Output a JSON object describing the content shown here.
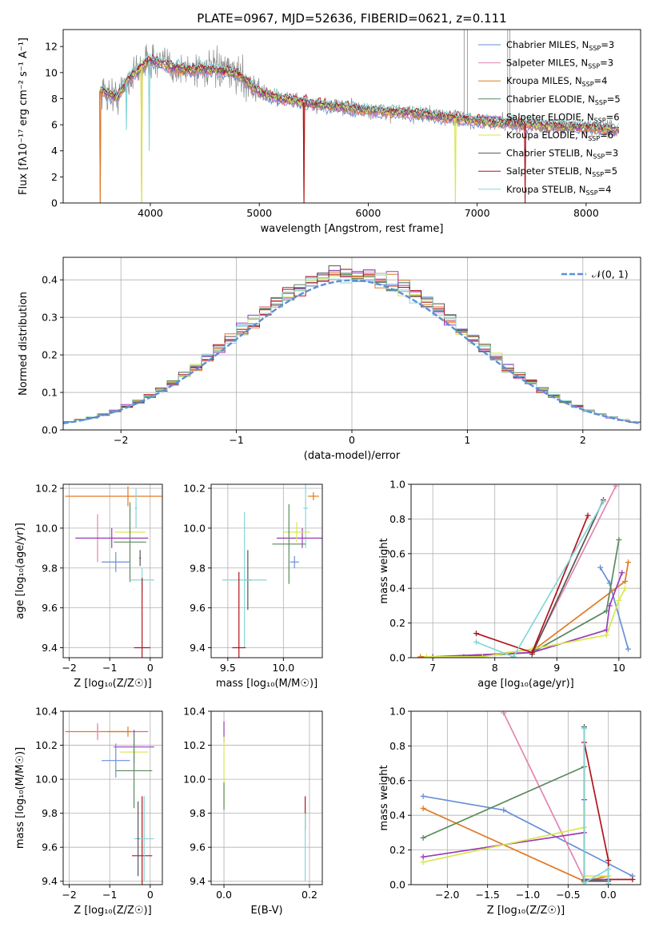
{
  "colors": {
    "Chabrier MILES": "#6a8fd8",
    "Salpeter MILES": "#e385b0",
    "Kroupa MILES": "#e07a26",
    "Chabrier ELODIE": "#5a8a5e",
    "Salpeter ELODIE": "#9a3cb8",
    "Kroupa ELODIE": "#d6e84a",
    "Chabrier STELIB": "#555555",
    "Salpeter STELIB": "#b0141c",
    "Kroupa STELIB": "#86d6d6",
    "data": "#8a8a8a",
    "normal": "#5b8fd6",
    "grid": "#b0b0b0"
  },
  "chart_data": [
    {
      "id": "spectrum",
      "type": "line",
      "title": "PLATE=0967, MJD=52636, FIBERID=0621, z=0.111",
      "xlabel": "wavelength [Angstrom, rest frame]",
      "ylabel": "Flux [fλ10⁻¹⁷ erg cm⁻² s⁻¹ A⁻¹]",
      "xlim": [
        3200,
        8500
      ],
      "ylim": [
        0,
        13.3
      ],
      "xticks": [
        4000,
        5000,
        6000,
        7000,
        8000
      ],
      "yticks": [
        0,
        2,
        4,
        6,
        8,
        10,
        12
      ],
      "grid": false,
      "legend_position": "top-right",
      "legend": [
        {
          "name": "Chabrier MILES",
          "label": "Chabrier MILES, N",
          "nssp": "=3"
        },
        {
          "name": "Salpeter MILES",
          "label": "Salpeter MILES, N",
          "nssp": "=3"
        },
        {
          "name": "Kroupa MILES",
          "label": "Kroupa MILES, N",
          "nssp": "=4"
        },
        {
          "name": "Chabrier ELODIE",
          "label": "Chabrier ELODIE, N",
          "nssp": "=5"
        },
        {
          "name": "Salpeter ELODIE",
          "label": "Salpeter ELODIE, N",
          "nssp": "=6"
        },
        {
          "name": "Kroupa ELODIE",
          "label": "Kroupa ELODIE, N",
          "nssp": "=6"
        },
        {
          "name": "Chabrier STELIB",
          "label": "Chabrier STELIB, N",
          "nssp": "=3"
        },
        {
          "name": "Salpeter STELIB",
          "label": "Salpeter STELIB, N",
          "nssp": "=5"
        },
        {
          "name": "Kroupa STELIB",
          "label": "Kroupa STELIB, N",
          "nssp": "=4"
        }
      ],
      "subscript": "SSP",
      "continuum": [
        [
          3540,
          8.6
        ],
        [
          3700,
          8.1
        ],
        [
          3800,
          9.5
        ],
        [
          3900,
          10.3
        ],
        [
          4000,
          10.9
        ],
        [
          4100,
          10.7
        ],
        [
          4300,
          10.2
        ],
        [
          4500,
          10.3
        ],
        [
          4800,
          9.9
        ],
        [
          5000,
          8.5
        ],
        [
          5200,
          8.0
        ],
        [
          5500,
          7.6
        ],
        [
          6000,
          7.1
        ],
        [
          6500,
          6.8
        ],
        [
          7000,
          6.3
        ],
        [
          7500,
          6.0
        ],
        [
          8000,
          5.8
        ],
        [
          8300,
          5.6
        ]
      ],
      "dips": [
        {
          "series": "Salpeter MILES",
          "x": 3540,
          "y": 0
        },
        {
          "series": "Kroupa MILES",
          "x": 3540,
          "y": 0
        },
        {
          "series": "Kroupa MILES",
          "x": 3920,
          "y": 0
        },
        {
          "series": "Kroupa ELODIE",
          "x": 3920,
          "y": 0
        },
        {
          "series": "Kroupa MILES",
          "x": 5410,
          "y": 0
        },
        {
          "series": "Salpeter STELIB",
          "x": 5410,
          "y": 0
        },
        {
          "series": "Kroupa ELODIE",
          "x": 6800,
          "y": 0
        },
        {
          "series": "Salpeter STELIB",
          "x": 7440,
          "y": 0
        },
        {
          "series": "Kroupa STELIB",
          "x": 3990,
          "y": 4.0
        },
        {
          "series": "Kroupa STELIB",
          "x": 3780,
          "y": 5.6
        }
      ]
    },
    {
      "id": "residuals",
      "type": "line",
      "xlabel": "(data-model)/error",
      "ylabel": "Normed distribution",
      "xlim": [
        -2.5,
        2.5
      ],
      "ylim": [
        0,
        0.46
      ],
      "xticks": [
        -2,
        -1,
        0,
        1,
        2
      ],
      "yticks": [
        0.0,
        0.1,
        0.2,
        0.3,
        0.4
      ],
      "grid": true,
      "legend_position": "top-right",
      "legend_label": "𝒩(0, 1)",
      "bin_width": 0.1,
      "series": [
        "Chabrier MILES",
        "Salpeter MILES",
        "Kroupa MILES",
        "Chabrier ELODIE",
        "Salpeter ELODIE",
        "Kroupa ELODIE",
        "Chabrier STELIB",
        "Salpeter STELIB",
        "Kroupa STELIB"
      ]
    },
    {
      "id": "age_vs_Z",
      "type": "scatter",
      "xlabel": "Z [log₁₀(Z/Z☉)]",
      "ylabel": "age  [log₁₀(age/yr)]",
      "xlim": [
        -2.15,
        0.3
      ],
      "ylim": [
        9.35,
        10.22
      ],
      "xticks": [
        -2,
        -1,
        0
      ],
      "yticks": [
        9.4,
        9.6,
        9.8,
        10.0,
        10.2
      ],
      "grid": true,
      "points": [
        {
          "series": "Kroupa MILES",
          "x": -0.55,
          "y": 10.16,
          "xerr": 1.55,
          "yerr": 0.05
        },
        {
          "series": "Kroupa STELIB",
          "x": -0.35,
          "y": 10.1,
          "xerr": 0.03,
          "yerr": 0.1
        },
        {
          "series": "Salpeter MILES",
          "x": -1.3,
          "y": 9.95,
          "xerr": 0.05,
          "yerr": 0.12
        },
        {
          "series": "Salpeter ELODIE",
          "x": -0.95,
          "y": 9.95,
          "xerr": 0.9,
          "yerr": 0.05
        },
        {
          "series": "Kroupa ELODIE",
          "x": -0.5,
          "y": 9.98,
          "xerr": 0.38,
          "yerr": 0.05
        },
        {
          "series": "Chabrier ELODIE",
          "x": -0.5,
          "y": 9.93,
          "xerr": 0.4,
          "yerr": 0.2
        },
        {
          "series": "Chabrier STELIB",
          "x": -0.25,
          "y": 9.85,
          "xerr": 0.02,
          "yerr": 0.04
        },
        {
          "series": "Chabrier MILES",
          "x": -0.85,
          "y": 9.83,
          "xerr": 0.35,
          "yerr": 0.05
        },
        {
          "series": "Kroupa STELIB",
          "x": -0.2,
          "y": 9.74,
          "xerr": 0.3,
          "yerr": 0.06
        },
        {
          "series": "Salpeter STELIB",
          "x": -0.2,
          "y": 9.4,
          "xerr": 0.2,
          "yerr": 0.35
        }
      ]
    },
    {
      "id": "age_vs_mass",
      "type": "scatter",
      "xlabel": "mass [log₁₀(M/M☉)]",
      "ylabel": "",
      "xlim": [
        9.35,
        10.35
      ],
      "ylim": [
        9.35,
        10.22
      ],
      "xticks": [
        9.5,
        10.0
      ],
      "yticks": [
        9.4,
        9.6,
        9.8,
        10.0,
        10.2
      ],
      "grid": true,
      "points": [
        {
          "series": "Kroupa MILES",
          "x": 10.27,
          "y": 10.16,
          "xerr": 0.05,
          "yerr": 0.02
        },
        {
          "series": "Kroupa STELIB",
          "x": 10.2,
          "y": 10.1,
          "xerr": 0.02,
          "yerr": 0.2
        },
        {
          "series": "Salpeter ELODIE",
          "x": 10.17,
          "y": 9.95,
          "xerr": 0.23,
          "yerr": 0.05
        },
        {
          "series": "Kroupa ELODIE",
          "x": 10.12,
          "y": 9.98,
          "xerr": 0.12,
          "yerr": 0.05
        },
        {
          "series": "Chabrier ELODIE",
          "x": 10.05,
          "y": 9.92,
          "xerr": 0.15,
          "yerr": 0.2
        },
        {
          "series": "Chabrier MILES",
          "x": 10.1,
          "y": 9.83,
          "xerr": 0.04,
          "yerr": 0.03
        },
        {
          "series": "Chabrier STELIB",
          "x": 9.68,
          "y": 9.74,
          "xerr": 0.03,
          "yerr": 0.15
        },
        {
          "series": "Kroupa STELIB",
          "x": 9.65,
          "y": 9.74,
          "xerr": 0.2,
          "yerr": 0.34
        },
        {
          "series": "Salpeter STELIB",
          "x": 9.6,
          "y": 9.4,
          "xerr": 0.06,
          "yerr": 0.38
        }
      ]
    },
    {
      "id": "weight_vs_age",
      "type": "line",
      "xlabel": "age  [log₁₀(age/yr)]",
      "ylabel": "mass weight",
      "xlim": [
        6.65,
        10.35
      ],
      "ylim": [
        0,
        1.0
      ],
      "xticks": [
        7,
        8,
        9,
        10
      ],
      "yticks": [
        0.0,
        0.2,
        0.4,
        0.6,
        0.8,
        1.0
      ],
      "grid": true,
      "series": [
        {
          "name": "Chabrier MILES",
          "points": [
            [
              9.7,
              0.52
            ],
            [
              9.85,
              0.43
            ],
            [
              10.15,
              0.05
            ]
          ]
        },
        {
          "name": "Salpeter MILES",
          "points": [
            [
              8.6,
              0.03
            ],
            [
              9.95,
              0.99
            ]
          ]
        },
        {
          "name": "Kroupa MILES",
          "points": [
            [
              6.8,
              0.005
            ],
            [
              7.7,
              0.005
            ],
            [
              8.65,
              0.05
            ],
            [
              10.1,
              0.44
            ],
            [
              10.15,
              0.55
            ]
          ]
        },
        {
          "name": "Chabrier ELODIE",
          "points": [
            [
              7.5,
              0.005
            ],
            [
              8.6,
              0.03
            ],
            [
              9.8,
              0.27
            ],
            [
              10.0,
              0.68
            ]
          ]
        },
        {
          "name": "Salpeter ELODIE",
          "points": [
            [
              7.0,
              0.005
            ],
            [
              8.6,
              0.03
            ],
            [
              9.8,
              0.16
            ],
            [
              9.85,
              0.3
            ],
            [
              10.05,
              0.49
            ]
          ]
        },
        {
          "name": "Kroupa ELODIE",
          "points": [
            [
              6.9,
              0.005
            ],
            [
              7.8,
              0.005
            ],
            [
              8.6,
              0.05
            ],
            [
              9.8,
              0.13
            ],
            [
              10.0,
              0.33
            ],
            [
              10.1,
              0.4
            ]
          ]
        },
        {
          "name": "Chabrier STELIB",
          "points": [
            [
              8.6,
              0.02
            ],
            [
              9.75,
              0.91
            ]
          ]
        },
        {
          "name": "Salpeter STELIB",
          "points": [
            [
              7.7,
              0.14
            ],
            [
              8.6,
              0.03
            ],
            [
              9.5,
              0.82
            ]
          ]
        },
        {
          "name": "Kroupa STELIB",
          "points": [
            [
              7.7,
              0.09
            ],
            [
              8.3,
              0.005
            ],
            [
              9.75,
              0.9
            ]
          ]
        }
      ]
    },
    {
      "id": "mass_vs_Z",
      "type": "scatter",
      "xlabel": "Z [log₁₀(Z/Z☉)]",
      "ylabel": "mass [log₁₀(M/M☉)]",
      "xlim": [
        -2.15,
        0.3
      ],
      "ylim": [
        9.38,
        10.4
      ],
      "xticks": [
        -2,
        -1,
        0
      ],
      "yticks": [
        9.4,
        9.6,
        9.8,
        10.0,
        10.2,
        10.4
      ],
      "grid": true,
      "points": [
        {
          "series": "Kroupa MILES",
          "x": -1.3,
          "y": 10.28,
          "xerr": 0.8,
          "yerr": 0.04
        },
        {
          "series": "Salpeter MILES",
          "x": -1.3,
          "y": 10.28,
          "xerr": 0.05,
          "yerr": 0.05
        },
        {
          "series": "Kroupa MILES",
          "x": -0.55,
          "y": 10.28,
          "xerr": 0.5,
          "yerr": 0.03
        },
        {
          "series": "Salpeter ELODIE",
          "x": -0.4,
          "y": 10.19,
          "xerr": 0.5,
          "yerr": 0.1
        },
        {
          "series": "Chabrier MILES",
          "x": -0.85,
          "y": 10.11,
          "xerr": 0.35,
          "yerr": 0.1
        },
        {
          "series": "Kroupa ELODIE",
          "x": -0.4,
          "y": 10.16,
          "xerr": 0.35,
          "yerr": 0.05
        },
        {
          "series": "Chabrier ELODIE",
          "x": -0.4,
          "y": 10.05,
          "xerr": 0.45,
          "yerr": 0.22
        },
        {
          "series": "Salpeter STELIB",
          "x": -0.2,
          "y": 9.55,
          "xerr": 0.25,
          "yerr": 0.35
        },
        {
          "series": "Kroupa STELIB",
          "x": -0.15,
          "y": 9.65,
          "xerr": 0.25,
          "yerr": 0.25
        },
        {
          "series": "Chabrier STELIB",
          "x": -0.3,
          "y": 9.65,
          "xerr": 0.02,
          "yerr": 0.22
        }
      ]
    },
    {
      "id": "mass_vs_ebv",
      "type": "scatter",
      "xlabel": "E(B-V)",
      "ylabel": "",
      "xlim": [
        -0.03,
        0.23
      ],
      "ylim": [
        9.38,
        10.4
      ],
      "xticks": [
        0.0,
        0.2
      ],
      "yticks": [
        9.4,
        9.6,
        9.8,
        10.0,
        10.2,
        10.4
      ],
      "grid": true,
      "points": [
        {
          "series": "Salpeter ELODIE",
          "x": 0.0,
          "y": 10.28,
          "xerr": 0.0,
          "yerr": 0.06
        },
        {
          "series": "Kroupa ELODIE",
          "x": 0.0,
          "y": 10.05,
          "xerr": 0.0,
          "yerr": 0.2
        },
        {
          "series": "Chabrier ELODIE",
          "x": 0.0,
          "y": 9.9,
          "xerr": 0.0,
          "yerr": 0.08
        },
        {
          "series": "Salpeter STELIB",
          "x": 0.19,
          "y": 9.8,
          "xerr": 0.0,
          "yerr": 0.1
        },
        {
          "series": "Kroupa STELIB",
          "x": 0.19,
          "y": 9.6,
          "xerr": 0.0,
          "yerr": 0.2
        }
      ]
    },
    {
      "id": "weight_vs_Z",
      "type": "line",
      "xlabel": "Z [log₁₀(Z/Z☉)]",
      "ylabel": "mass weight",
      "xlim": [
        -2.45,
        0.4
      ],
      "ylim": [
        0,
        1.0
      ],
      "xticks": [
        -2.0,
        -1.5,
        -1.0,
        -0.5,
        0.0
      ],
      "yticks": [
        0.0,
        0.2,
        0.4,
        0.6,
        0.8,
        1.0
      ],
      "grid": true,
      "series": [
        {
          "name": "Chabrier MILES",
          "points": [
            [
              -2.3,
              0.51
            ],
            [
              -1.3,
              0.43
            ],
            [
              0.3,
              0.05
            ]
          ]
        },
        {
          "name": "Salpeter MILES",
          "points": [
            [
              -1.3,
              0.99
            ],
            [
              -0.3,
              0.03
            ]
          ]
        },
        {
          "name": "Kroupa MILES",
          "points": [
            [
              -2.3,
              0.44
            ],
            [
              -0.3,
              0.02
            ],
            [
              0.0,
              0.05
            ]
          ]
        },
        {
          "name": "Chabrier ELODIE",
          "points": [
            [
              -2.3,
              0.27
            ],
            [
              -0.3,
              0.68
            ],
            [
              -0.3,
              0.02
            ],
            [
              0.0,
              0.03
            ]
          ]
        },
        {
          "name": "Salpeter ELODIE",
          "points": [
            [
              -2.3,
              0.16
            ],
            [
              -0.3,
              0.3
            ],
            [
              -0.3,
              0.49
            ],
            [
              -0.3,
              0.03
            ],
            [
              0.0,
              0.03
            ]
          ]
        },
        {
          "name": "Kroupa ELODIE",
          "points": [
            [
              -2.3,
              0.13
            ],
            [
              -0.3,
              0.33
            ],
            [
              -0.3,
              0.4
            ],
            [
              -0.3,
              0.05
            ],
            [
              0.0,
              0.05
            ]
          ]
        },
        {
          "name": "Chabrier STELIB",
          "points": [
            [
              -0.3,
              0.91
            ],
            [
              -0.3,
              0.02
            ],
            [
              0.0,
              0.02
            ]
          ]
        },
        {
          "name": "Salpeter STELIB",
          "points": [
            [
              -0.3,
              0.82
            ],
            [
              0.0,
              0.14
            ],
            [
              0.0,
              0.03
            ],
            [
              0.3,
              0.03
            ]
          ]
        },
        {
          "name": "Kroupa STELIB",
          "points": [
            [
              -0.3,
              0.9
            ],
            [
              -0.3,
              0.01
            ],
            [
              0.0,
              0.09
            ],
            [
              0.0,
              0.005
            ]
          ]
        }
      ]
    }
  ]
}
